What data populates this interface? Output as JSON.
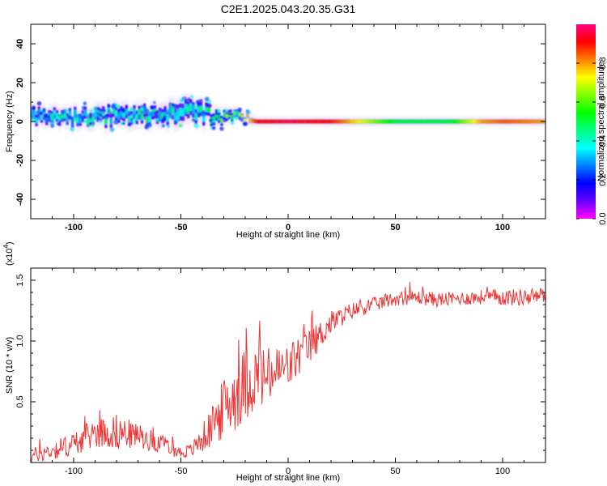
{
  "title": "C2E1.2025.043.20.35.G31",
  "chart_data": [
    {
      "type": "heatmap",
      "xlabel": "Height of straight line (km)",
      "ylabel": "Frequency (Hz)",
      "xlim": [
        -120,
        120
      ],
      "ylim": [
        -50,
        50
      ],
      "xticks": [
        -100,
        -50,
        0,
        50,
        100
      ],
      "yticks": [
        -40,
        -20,
        0,
        20,
        40
      ],
      "colorbar": {
        "label": "Normalized spectral amplitude",
        "range": [
          0.0,
          1.0
        ],
        "ticks": [
          "0.0",
          "0.2",
          "0.4",
          "0.6",
          "0.8"
        ],
        "colors": [
          "#ff00ff",
          "#6600ff",
          "#0000ff",
          "#0080ff",
          "#00ffff",
          "#00ff80",
          "#00ff00",
          "#80ff00",
          "#ffff00",
          "#ff8000",
          "#ff0000",
          "#ff0080"
        ]
      },
      "ridge": {
        "x": [
          -120,
          -100,
          -80,
          -60,
          -50,
          -40,
          -30,
          -20,
          -15,
          0,
          20,
          50,
          75,
          90,
          100,
          120
        ],
        "center_hz": [
          3,
          2,
          3,
          3,
          5,
          4,
          3,
          1,
          0,
          0,
          0,
          0,
          0,
          0,
          0,
          0
        ],
        "spread_hz": [
          6,
          6,
          7,
          7,
          9,
          7,
          5,
          3,
          2,
          2,
          2,
          2,
          2,
          2,
          2,
          2
        ],
        "peak_amplitude": [
          0.35,
          0.35,
          0.4,
          0.4,
          0.35,
          0.45,
          0.55,
          0.7,
          0.9,
          0.95,
          0.9,
          0.5,
          0.5,
          0.8,
          0.85,
          0.8
        ]
      }
    },
    {
      "type": "line",
      "xlabel": "Height of straight line (km)",
      "ylabel": "SNR (10 * v/v)",
      "scale_note": "(x10",
      "scale_exp": "4",
      "xlim": [
        -120,
        120
      ],
      "ylim": [
        0,
        1.6
      ],
      "xticks": [
        -100,
        -50,
        0,
        50,
        100
      ],
      "yticks": [
        "0.5",
        "1.0",
        "1.5"
      ],
      "line_color": "#ee3333",
      "series": [
        {
          "x": [
            -120,
            -110,
            -100,
            -90,
            -80,
            -70,
            -60,
            -50,
            -45,
            -40,
            -35,
            -30,
            -25,
            -20,
            -15,
            -10,
            -5,
            0,
            5,
            10,
            15,
            20,
            25,
            30,
            40,
            50,
            60,
            70,
            80,
            90,
            100,
            110,
            120
          ],
          "values": [
            0.05,
            0.1,
            0.15,
            0.25,
            0.25,
            0.22,
            0.16,
            0.08,
            0.1,
            0.2,
            0.3,
            0.45,
            0.55,
            0.65,
            0.7,
            0.7,
            0.75,
            0.78,
            0.88,
            0.95,
            1.05,
            1.15,
            1.2,
            1.25,
            1.3,
            1.35,
            1.36,
            1.34,
            1.35,
            1.36,
            1.36,
            1.36,
            1.38
          ],
          "noise": [
            0.06,
            0.08,
            0.1,
            0.12,
            0.15,
            0.1,
            0.08,
            0.05,
            0.06,
            0.12,
            0.18,
            0.25,
            0.3,
            0.3,
            0.28,
            0.25,
            0.22,
            0.2,
            0.18,
            0.15,
            0.12,
            0.1,
            0.08,
            0.07,
            0.06,
            0.06,
            0.06,
            0.06,
            0.06,
            0.06,
            0.07,
            0.07,
            0.07
          ]
        }
      ]
    }
  ]
}
